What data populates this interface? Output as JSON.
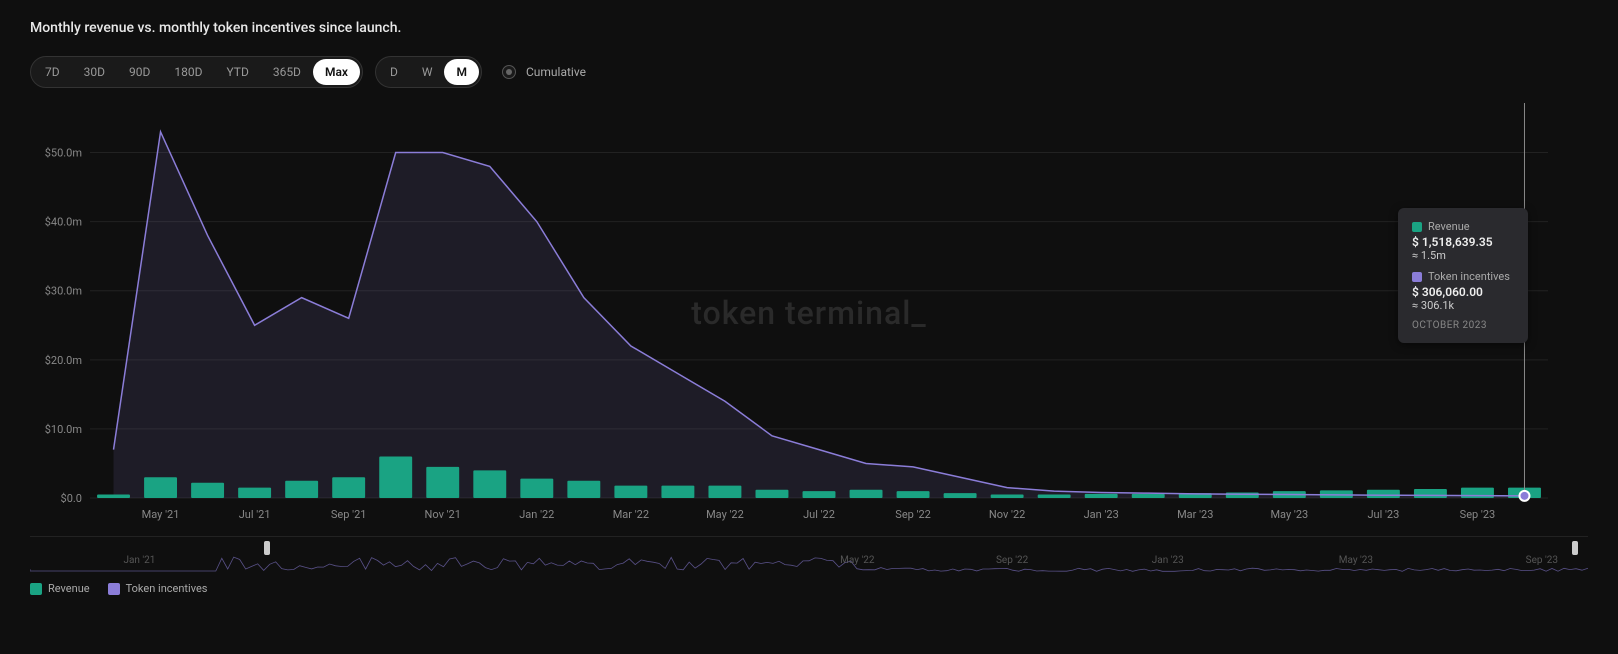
{
  "title": "Monthly revenue vs. monthly token incentives since launch.",
  "range_buttons": [
    "7D",
    "30D",
    "90D",
    "180D",
    "YTD",
    "365D",
    "Max"
  ],
  "range_active": "Max",
  "granularity_buttons": [
    "D",
    "W",
    "M"
  ],
  "granularity_active": "M",
  "cumulative_label": "Cumulative",
  "cumulative_on": false,
  "watermark": "token terminal_",
  "colors": {
    "background": "#0f0f0f",
    "revenue_bar": "#1aa383",
    "incentives_line": "#8b7dd8",
    "incentives_area": "rgba(139,125,216,0.12)",
    "grid": "#222222",
    "axis_text": "#888888",
    "tooltip_bg": "#2a2a2e",
    "cursor_line": "#888888",
    "marker_ring": "#ffffff"
  },
  "chart": {
    "type": "bar+line",
    "y_label_prefix": "$",
    "y_label_suffix": "m",
    "ylim": [
      0,
      55
    ],
    "y_ticks": [
      0,
      10,
      20,
      30,
      40,
      50
    ],
    "y_tick_labels": [
      "$0.0",
      "$10.0m",
      "$20.0m",
      "$30.0m",
      "$40.0m",
      "$50.0m"
    ],
    "x_tick_labels": [
      "May '21",
      "Jul '21",
      "Sep '21",
      "Nov '21",
      "Jan '22",
      "Mar '22",
      "May '22",
      "Jul '22",
      "Sep '22",
      "Nov '22",
      "Jan '23",
      "Mar '23",
      "May '23",
      "Jul '23",
      "Sep '23"
    ],
    "x_tick_indices": [
      1,
      3,
      5,
      7,
      9,
      11,
      13,
      15,
      17,
      19,
      21,
      23,
      25,
      27,
      29
    ],
    "months": [
      "Apr '21",
      "May '21",
      "Jun '21",
      "Jul '21",
      "Aug '21",
      "Sep '21",
      "Oct '21",
      "Nov '21",
      "Dec '21",
      "Jan '22",
      "Feb '22",
      "Mar '22",
      "Apr '22",
      "May '22",
      "Jun '22",
      "Jul '22",
      "Aug '22",
      "Sep '22",
      "Oct '22",
      "Nov '22",
      "Dec '22",
      "Jan '23",
      "Feb '23",
      "Mar '23",
      "Apr '23",
      "May '23",
      "Jun '23",
      "Jul '23",
      "Aug '23",
      "Sep '23",
      "Oct '23"
    ],
    "revenue_m": [
      0.5,
      3.0,
      2.2,
      1.5,
      2.5,
      3.0,
      6.0,
      4.5,
      4.0,
      2.8,
      2.5,
      1.8,
      1.8,
      1.8,
      1.2,
      1.0,
      1.2,
      1.0,
      0.7,
      0.5,
      0.5,
      0.6,
      0.6,
      0.7,
      0.8,
      1.0,
      1.1,
      1.2,
      1.3,
      1.5,
      1.5
    ],
    "incentives_m": [
      7.0,
      53.0,
      38.0,
      25.0,
      29.0,
      26.0,
      50.0,
      50.0,
      48.0,
      40.0,
      29.0,
      22.0,
      18.0,
      14.0,
      9.0,
      7.0,
      5.0,
      4.5,
      3.0,
      1.5,
      1.0,
      0.8,
      0.7,
      0.6,
      0.55,
      0.5,
      0.45,
      0.4,
      0.38,
      0.35,
      0.31
    ],
    "bar_width_ratio": 0.7,
    "line_width": 1.5,
    "marker_index": 30
  },
  "tooltip": {
    "series": [
      {
        "label": "Revenue",
        "value": "$ 1,518,639.35",
        "approx": "≈ 1.5m",
        "swatch": "#1aa383"
      },
      {
        "label": "Token incentives",
        "value": "$ 306,060.00",
        "approx": "≈ 306.1k",
        "swatch": "#8b7dd8"
      }
    ],
    "date": "OCTOBER 2023"
  },
  "brush": {
    "labels": [
      "Jan '21",
      "May '22",
      "Sep '22",
      "Jan '23",
      "May '23",
      "Sep '23"
    ],
    "label_positions_pct": [
      6,
      52,
      62,
      72,
      84,
      96
    ],
    "handle_left_pct": 15,
    "handle_right_pct": 99
  },
  "legend": [
    {
      "label": "Revenue",
      "color": "#1aa383"
    },
    {
      "label": "Token incentives",
      "color": "#8b7dd8"
    }
  ]
}
